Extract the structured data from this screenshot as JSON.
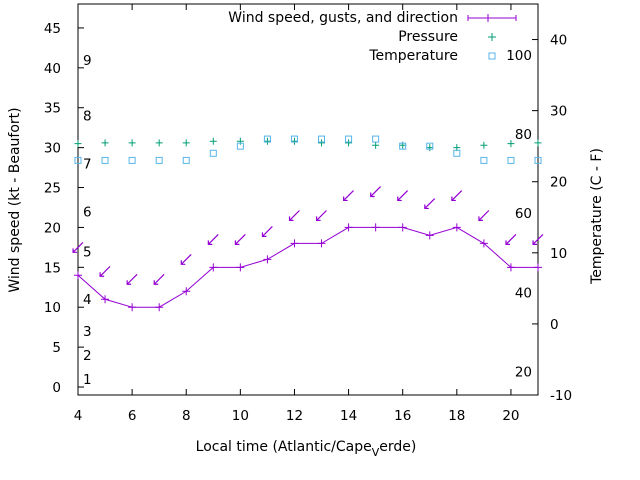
{
  "chart_data": {
    "type": "line",
    "title": "",
    "xlabel": "Local time (Atlantic/Cape",
    "xlabel_sub": "V",
    "xlabel_tail": "erde)",
    "ylabel": "Wind speed (kt - Beaufort)",
    "y2label": "Temperature (C - F)",
    "xlim": [
      4,
      21
    ],
    "ylim": [
      -1,
      48
    ],
    "y2lim": [
      -10,
      45
    ],
    "x_ticks": [
      "4",
      "6",
      "8",
      "10",
      "12",
      "14",
      "16",
      "18",
      "20"
    ],
    "y_ticks": [
      "0",
      "5",
      "10",
      "15",
      "20",
      "25",
      "30",
      "35",
      "40",
      "45"
    ],
    "y2_ticks": [
      "-10",
      "0",
      "10",
      "20",
      "30",
      "40"
    ],
    "beaufort_labels": [
      {
        "text": "1",
        "y": 1
      },
      {
        "text": "2",
        "y": 4
      },
      {
        "text": "3",
        "y": 7
      },
      {
        "text": "4",
        "y": 11
      },
      {
        "text": "5",
        "y": 17
      },
      {
        "text": "6",
        "y": 22
      },
      {
        "text": "7",
        "y": 28
      },
      {
        "text": "8",
        "y": 34
      },
      {
        "text": "9",
        "y": 41
      }
    ],
    "fahrenheit_labels": [
      {
        "text": "20",
        "y2": -6.7
      },
      {
        "text": "40",
        "y2": 4.4
      },
      {
        "text": "60",
        "y2": 15.6
      },
      {
        "text": "80",
        "y2": 26.7
      },
      {
        "text": "100",
        "y2": 37.8
      }
    ],
    "legend": [
      {
        "label": "Wind speed, gusts, and direction",
        "color": "#9400d3",
        "marker": "plus-line"
      },
      {
        "label": "Pressure",
        "color": "#009e73",
        "marker": "plus"
      },
      {
        "label": "Temperature",
        "color": "#56b4e9",
        "marker": "square"
      }
    ],
    "series": [
      {
        "name": "Wind speed",
        "color": "#9400d3",
        "x": [
          4,
          5,
          6,
          7,
          8,
          9,
          10,
          11,
          12,
          13,
          14,
          15,
          16,
          17,
          18,
          19,
          20,
          21
        ],
        "y": [
          14,
          11,
          10,
          10,
          12,
          15,
          15,
          16,
          18,
          18,
          20,
          20,
          20,
          19,
          20,
          18,
          15,
          15
        ]
      },
      {
        "name": "Gusts / direction",
        "color": "#9400d3",
        "x": [
          4,
          5,
          6,
          7,
          8,
          9,
          10,
          11,
          12,
          13,
          14,
          15,
          16,
          17,
          18,
          19,
          20,
          21
        ],
        "y": [
          17.5,
          14.5,
          13.5,
          13.5,
          16,
          18.5,
          18.5,
          19.5,
          21.5,
          21.5,
          24,
          24.5,
          24,
          23,
          24,
          21.5,
          18.5,
          18.5
        ],
        "direction_deg": [
          45,
          45,
          45,
          45,
          45,
          45,
          45,
          45,
          45,
          45,
          45,
          45,
          45,
          45,
          45,
          45,
          45,
          45
        ]
      },
      {
        "name": "Pressure",
        "color": "#009e73",
        "x": [
          4,
          5,
          6,
          7,
          8,
          9,
          10,
          11,
          12,
          13,
          14,
          15,
          16,
          17,
          18,
          19,
          20,
          21
        ],
        "y": [
          30.5,
          30.6,
          30.6,
          30.6,
          30.6,
          30.8,
          30.8,
          30.8,
          30.8,
          30.6,
          30.6,
          30.3,
          30.3,
          30.0,
          30.0,
          30.3,
          30.5,
          30.6
        ]
      },
      {
        "name": "Temperature",
        "color": "#56b4e9",
        "x": [
          4,
          5,
          6,
          7,
          8,
          9,
          10,
          11,
          12,
          13,
          14,
          15,
          16,
          17,
          18,
          19,
          20,
          21
        ],
        "y2": [
          23,
          23,
          23,
          23,
          23,
          24,
          25,
          26,
          26,
          26,
          26,
          26,
          25,
          25,
          24,
          23,
          23,
          23
        ]
      }
    ]
  }
}
